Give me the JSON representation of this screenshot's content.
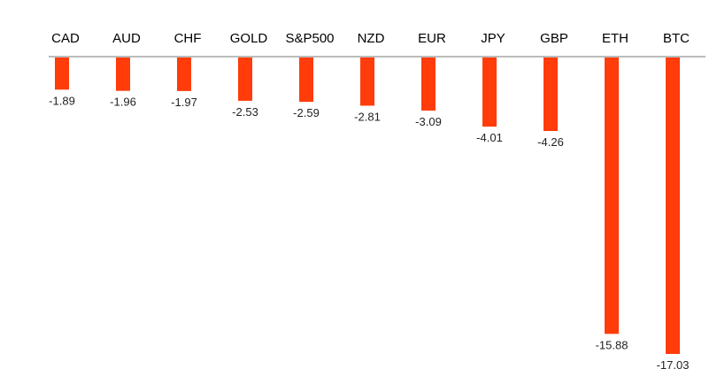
{
  "chart_data": {
    "type": "bar",
    "categories": [
      "CAD",
      "AUD",
      "CHF",
      "GOLD",
      "S&P500",
      "NZD",
      "EUR",
      "JPY",
      "GBP",
      "ETH",
      "BTC"
    ],
    "values": [
      -1.89,
      -1.96,
      -1.97,
      -2.53,
      -2.59,
      -2.81,
      -3.09,
      -4.01,
      -4.26,
      -15.88,
      -17.03
    ],
    "value_labels": [
      "-1.89",
      "-1.96",
      "-1.97",
      "-2.53",
      "-2.59",
      "-2.81",
      "-3.09",
      "-4.01",
      "-4.26",
      "-15.88",
      "-17.03"
    ],
    "title": "",
    "xlabel": "",
    "ylabel": "",
    "ylim": [
      -17.03,
      0
    ],
    "grid": false,
    "legend": "none",
    "category_label_position": "top",
    "colors": {
      "bar": "#ff3c0a",
      "axis": "#a6a6a6",
      "label_text": "#000000"
    }
  }
}
